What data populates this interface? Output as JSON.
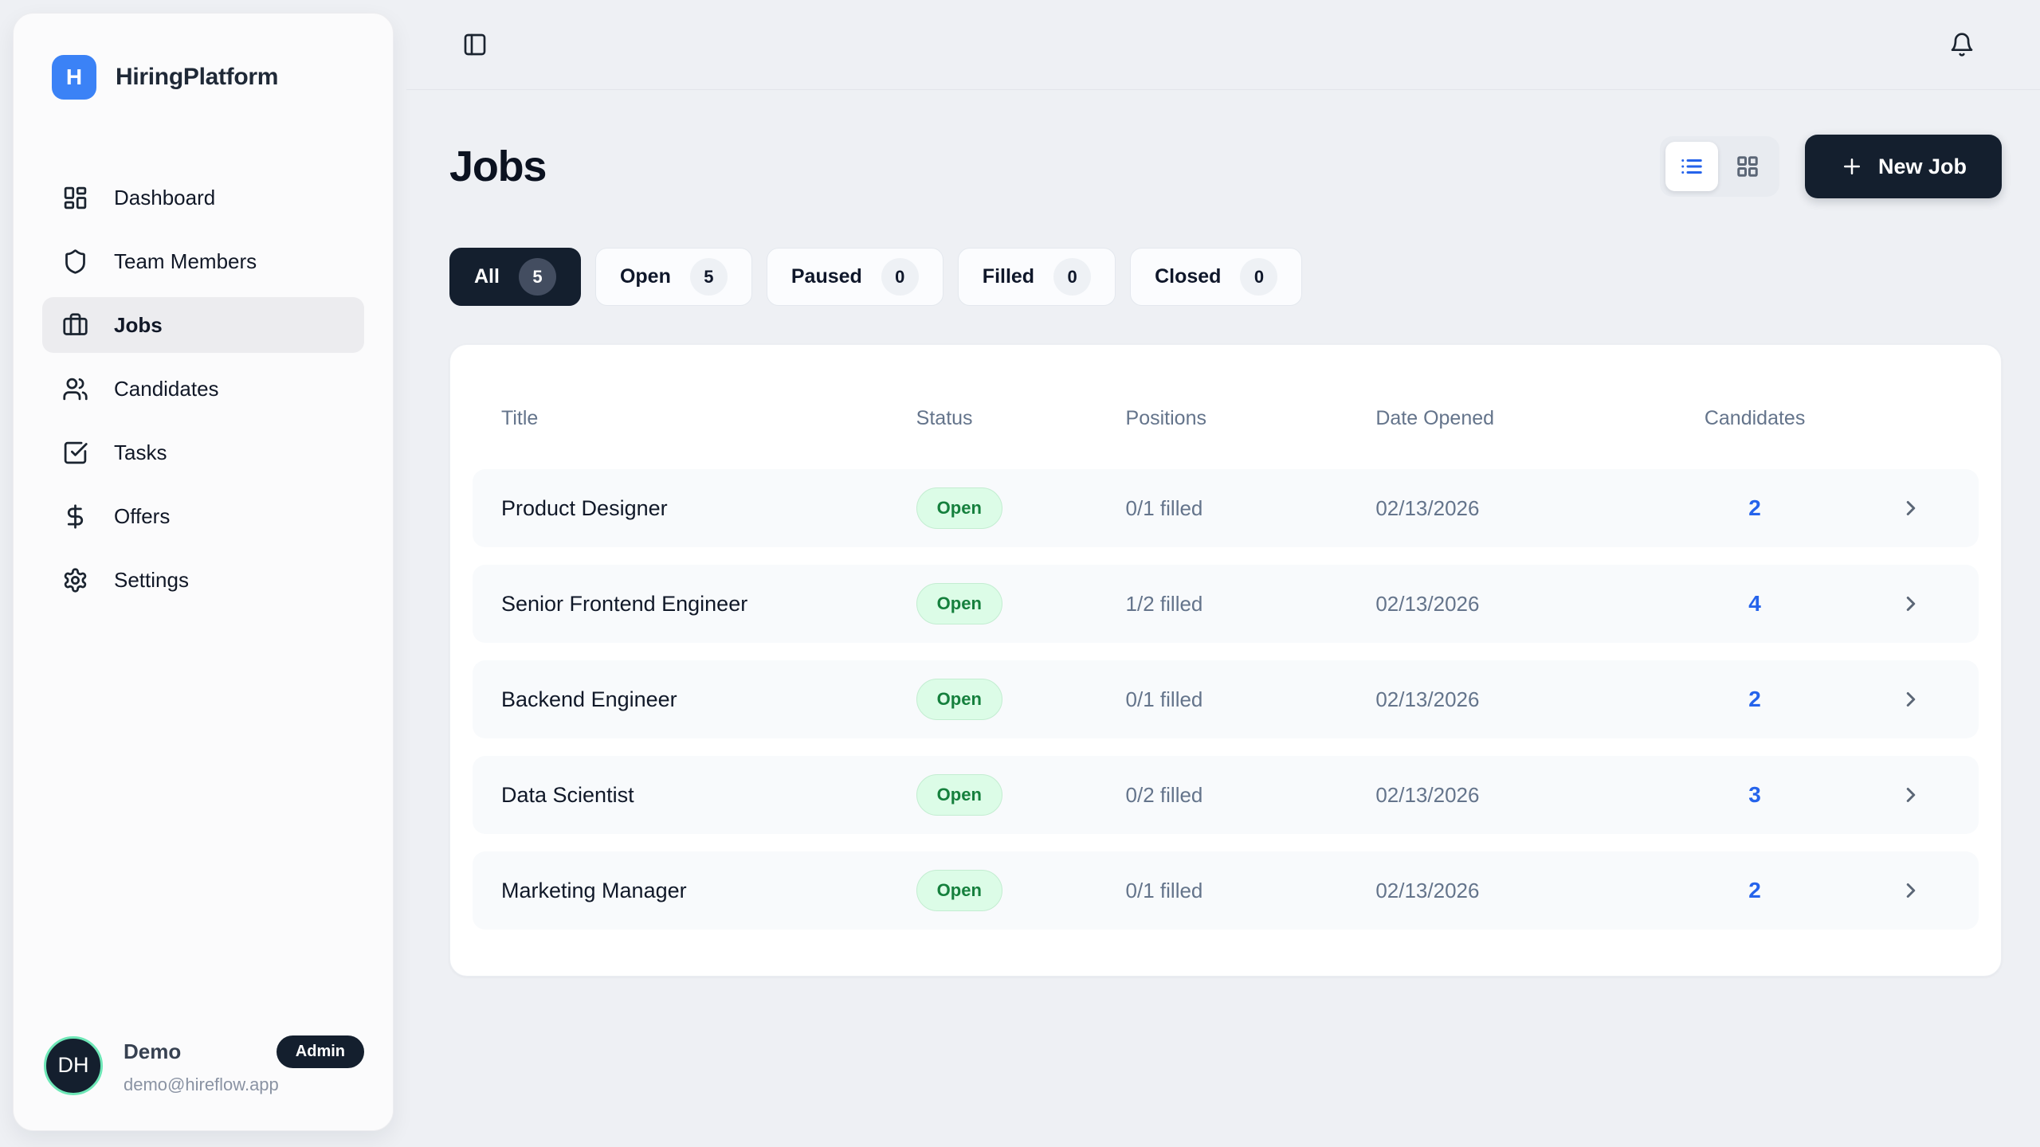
{
  "brand": {
    "name": "HiringPlatform",
    "logo_letter": "H"
  },
  "sidebar": {
    "items": [
      {
        "label": "Dashboard",
        "icon": "layout-dashboard",
        "active": false
      },
      {
        "label": "Team Members",
        "icon": "shield",
        "active": false
      },
      {
        "label": "Jobs",
        "icon": "briefcase",
        "active": true
      },
      {
        "label": "Candidates",
        "icon": "users",
        "active": false
      },
      {
        "label": "Tasks",
        "icon": "check-square",
        "active": false
      },
      {
        "label": "Offers",
        "icon": "dollar-sign",
        "active": false
      },
      {
        "label": "Settings",
        "icon": "gear",
        "active": false
      }
    ],
    "user": {
      "initials": "DH",
      "name": "Demo",
      "role_badge": "Admin",
      "email": "demo@hireflow.app"
    }
  },
  "topbar": {
    "icons": [
      "panel-left",
      "bell"
    ]
  },
  "page": {
    "title": "Jobs",
    "new_job_button": "New Job",
    "view_toggle": {
      "modes": [
        "list",
        "grid"
      ],
      "active": "list"
    },
    "filters": [
      {
        "label": "All",
        "count": "5",
        "active": true
      },
      {
        "label": "Open",
        "count": "5",
        "active": false
      },
      {
        "label": "Paused",
        "count": "0",
        "active": false
      },
      {
        "label": "Filled",
        "count": "0",
        "active": false
      },
      {
        "label": "Closed",
        "count": "0",
        "active": false
      }
    ],
    "table": {
      "headers": [
        "Title",
        "Status",
        "Positions",
        "Date Opened",
        "Candidates"
      ],
      "rows": [
        {
          "title": "Product Designer",
          "status": "Open",
          "positions": "0/1 filled",
          "date_opened": "02/13/2026",
          "candidates": "2"
        },
        {
          "title": "Senior Frontend Engineer",
          "status": "Open",
          "positions": "1/2 filled",
          "date_opened": "02/13/2026",
          "candidates": "4"
        },
        {
          "title": "Backend Engineer",
          "status": "Open",
          "positions": "0/1 filled",
          "date_opened": "02/13/2026",
          "candidates": "2"
        },
        {
          "title": "Data Scientist",
          "status": "Open",
          "positions": "0/2 filled",
          "date_opened": "02/13/2026",
          "candidates": "3"
        },
        {
          "title": "Marketing Manager",
          "status": "Open",
          "positions": "0/1 filled",
          "date_opened": "02/13/2026",
          "candidates": "2"
        }
      ]
    }
  },
  "colors": {
    "brand-blue": "#3b82f6",
    "navy": "#141f2e",
    "accent-blue": "#2563eb",
    "page-bg": "#eef0f4",
    "sidebar-bg": "#fbfbfc",
    "card-bg": "#ffffff",
    "row-bg": "#f8fafc",
    "muted-text": "#64748b",
    "dark-text": "#0f172a",
    "border": "#e4e8ee",
    "open-badge-bg": "#dcfce7",
    "open-badge-text": "#15803d",
    "open-badge-border": "#c3edd1",
    "avatar-ring": "#6ee7b7"
  }
}
